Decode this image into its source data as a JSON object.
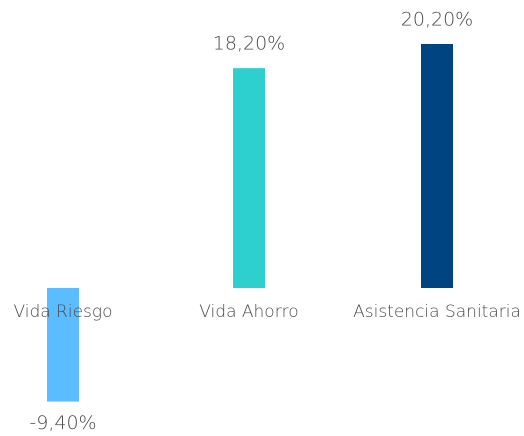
{
  "chart_data": {
    "type": "bar",
    "categories": [
      "Vida Riesgo",
      "Vida Ahorro",
      "Asistencia Sanitaria"
    ],
    "values": [
      -9.4,
      18.2,
      20.2
    ],
    "value_labels": [
      "-9,40%",
      "18,20%",
      "20,20%"
    ],
    "colors": [
      "#5bbcff",
      "#2ecfcf",
      "#004481"
    ]
  }
}
